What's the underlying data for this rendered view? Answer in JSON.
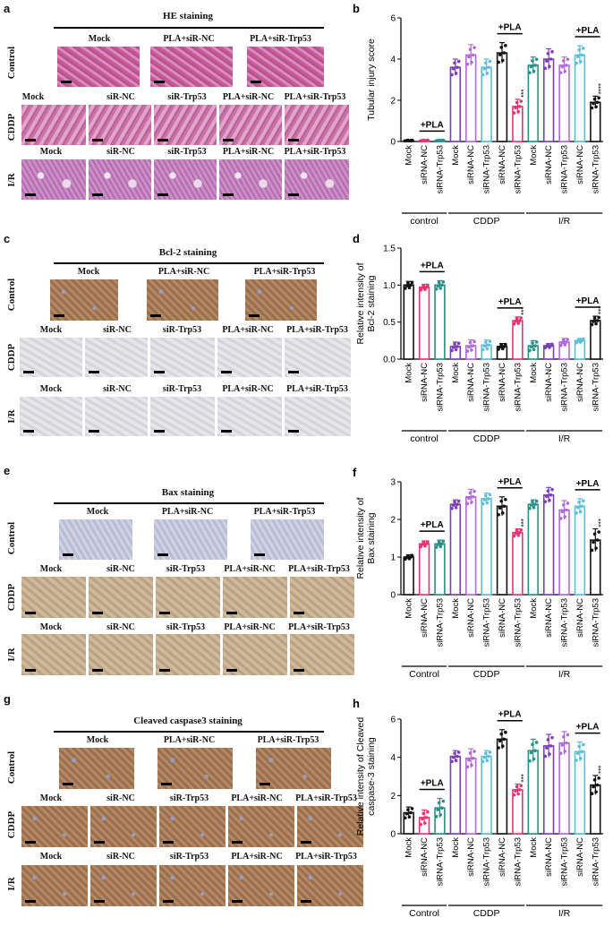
{
  "panels": {
    "a": {
      "letter": "a",
      "title": "HE staining",
      "row_labels": [
        "Control",
        "CDDP",
        "I/R"
      ],
      "control_cols": [
        "Mock",
        "PLA+siR-NC",
        "PLA+siR-Trp53"
      ],
      "treat_cols": [
        "Mock",
        "siR-NC",
        "siR-Trp53",
        "PLA+siR-NC",
        "PLA+siR-Trp53"
      ]
    },
    "c": {
      "letter": "c",
      "title": "Bcl-2 staining",
      "row_labels": [
        "Control",
        "CDDP",
        "I/R"
      ],
      "control_cols": [
        "Mock",
        "PLA+siR-NC",
        "PLA+siR-Trp53"
      ],
      "treat_cols": [
        "Mock",
        "siR-NC",
        "siR-Trp53",
        "PLA+siR-NC",
        "PLA+siR-Trp53"
      ]
    },
    "e": {
      "letter": "e",
      "title": "Bax staining",
      "row_labels": [
        "Control",
        "CDDP",
        "I/R"
      ],
      "control_cols": [
        "Mock",
        "PLA+siR-NC",
        "PLA+siR-Trp53"
      ],
      "treat_cols": [
        "Mock",
        "siR-NC",
        "siR-Trp53",
        "PLA+siR-NC",
        "PLA+siR-Trp53"
      ]
    },
    "g": {
      "letter": "g",
      "title": "Cleaved caspase3 staining",
      "row_labels": [
        "Control",
        "CDDP",
        "I/R"
      ],
      "control_cols": [
        "Mock",
        "PLA+siR-NC",
        "PLA+siR-Trp53"
      ],
      "treat_cols": [
        "Mock",
        "siR-NC",
        "siR-Trp53",
        "PLA+siR-NC",
        "PLA+siR-Trp53"
      ]
    }
  },
  "colors": {
    "black": "#111111",
    "pink": "#e8346e",
    "teal": "#2a8f86",
    "purple": "#7b3fb5",
    "lavender": "#b06ad8",
    "cyan": "#5bc0d6"
  },
  "chart_data": [
    {
      "letter": "b",
      "type": "bar",
      "ylabel": "Tubular injury score",
      "ylim": [
        0,
        6
      ],
      "yticks": [
        "0",
        "2",
        "4",
        "6"
      ],
      "categories": [
        "Mock",
        "siRNA-NC",
        "siRNA-Trp53",
        "Mock",
        "siRNA-NC",
        "siRNA-Trp53",
        "siRNA-NC",
        "siRNA-Trp53",
        "Mock",
        "siRNA-NC",
        "siRNA-Trp53",
        "siRNA-NC",
        "siRNA-Trp53"
      ],
      "values": [
        0.05,
        0.05,
        0.05,
        3.6,
        4.2,
        3.6,
        4.3,
        1.7,
        3.7,
        4.0,
        3.7,
        4.2,
        1.9
      ],
      "errors": [
        0.02,
        0.02,
        0.02,
        0.4,
        0.5,
        0.4,
        0.5,
        0.35,
        0.4,
        0.5,
        0.4,
        0.45,
        0.3
      ],
      "colors": [
        "#111111",
        "#e8346e",
        "#2a8f86",
        "#7b3fb5",
        "#b06ad8",
        "#5bc0d6",
        "#111111",
        "#e8346e",
        "#2a8f86",
        "#7b3fb5",
        "#b06ad8",
        "#5bc0d6",
        "#111111"
      ],
      "stars": [
        "",
        "",
        "",
        "",
        "",
        "",
        "",
        "***",
        "",
        "",
        "",
        "",
        "****"
      ],
      "pla_labels": [
        "+PLA",
        "+PLA",
        "+PLA"
      ],
      "pla_spans": [
        [
          1,
          2
        ],
        [
          6,
          7
        ],
        [
          11,
          12
        ]
      ],
      "groups": [
        {
          "label": "control",
          "start": 0,
          "end": 2
        },
        {
          "label": "CDDP",
          "start": 3,
          "end": 7
        },
        {
          "label": "I/R",
          "start": 8,
          "end": 12
        }
      ]
    },
    {
      "letter": "d",
      "type": "bar",
      "ylabel": "Relative intensity of\nBcl-2 staining",
      "ylim": [
        0,
        1.5
      ],
      "yticks": [
        "0.0",
        "0.5",
        "1.0",
        "1.5"
      ],
      "categories": [
        "Mock",
        "siRNA-NC",
        "siRNA-Trp53",
        "Mock",
        "siRNA-NC",
        "siRNA-Trp53",
        "siRNA-NC",
        "siRNA-Trp53",
        "Mock",
        "siRNA-NC",
        "siRNA-Trp53",
        "siRNA-NC",
        "siRNA-Trp53"
      ],
      "values": [
        1.0,
        0.97,
        1.0,
        0.17,
        0.18,
        0.19,
        0.17,
        0.52,
        0.18,
        0.18,
        0.23,
        0.25,
        0.52
      ],
      "errors": [
        0.05,
        0.04,
        0.06,
        0.06,
        0.08,
        0.07,
        0.04,
        0.05,
        0.07,
        0.03,
        0.05,
        0.03,
        0.06
      ],
      "colors": [
        "#111111",
        "#e8346e",
        "#2a8f86",
        "#7b3fb5",
        "#b06ad8",
        "#5bc0d6",
        "#111111",
        "#e8346e",
        "#2a8f86",
        "#7b3fb5",
        "#b06ad8",
        "#5bc0d6",
        "#111111"
      ],
      "stars": [
        "",
        "",
        "",
        "",
        "",
        "",
        "",
        "***",
        "",
        "",
        "",
        "",
        "***"
      ],
      "pla_labels": [
        "+PLA",
        "+PLA",
        "+PLA"
      ],
      "pla_spans": [
        [
          1,
          2
        ],
        [
          6,
          7
        ],
        [
          11,
          12
        ]
      ],
      "groups": [
        {
          "label": "control",
          "start": 0,
          "end": 2
        },
        {
          "label": "CDDP",
          "start": 3,
          "end": 7
        },
        {
          "label": "I/R",
          "start": 8,
          "end": 12
        }
      ]
    },
    {
      "letter": "f",
      "type": "bar",
      "ylabel": "Relative intensity of\nBax staining",
      "ylim": [
        0,
        3
      ],
      "yticks": [
        "0",
        "1",
        "2",
        "3"
      ],
      "categories": [
        "Mock",
        "siRNA-NC",
        "siRNA-Trp53",
        "Mock",
        "siRNA-NC",
        "siRNA-Trp53",
        "siRNA-NC",
        "siRNA-Trp53",
        "Mock",
        "siRNA-NC",
        "siRNA-Trp53",
        "siRNA-NC",
        "siRNA-Trp53"
      ],
      "values": [
        1.0,
        1.35,
        1.35,
        2.4,
        2.6,
        2.55,
        2.35,
        1.65,
        2.4,
        2.65,
        2.25,
        2.35,
        1.45
      ],
      "errors": [
        0.06,
        0.08,
        0.1,
        0.12,
        0.2,
        0.15,
        0.25,
        0.1,
        0.12,
        0.2,
        0.25,
        0.2,
        0.3
      ],
      "colors": [
        "#111111",
        "#e8346e",
        "#2a8f86",
        "#7b3fb5",
        "#b06ad8",
        "#5bc0d6",
        "#111111",
        "#e8346e",
        "#2a8f86",
        "#7b3fb5",
        "#b06ad8",
        "#5bc0d6",
        "#111111"
      ],
      "stars": [
        "",
        "",
        "",
        "",
        "",
        "",
        "",
        "***",
        "",
        "",
        "",
        "",
        "***"
      ],
      "pla_labels": [
        "+PLA",
        "+PLA",
        "+PLA"
      ],
      "pla_spans": [
        [
          1,
          2
        ],
        [
          6,
          7
        ],
        [
          11,
          12
        ]
      ],
      "groups": [
        {
          "label": "Control",
          "start": 0,
          "end": 2
        },
        {
          "label": "CDDP",
          "start": 3,
          "end": 7
        },
        {
          "label": "I/R",
          "start": 8,
          "end": 12
        }
      ]
    },
    {
      "letter": "h",
      "type": "bar",
      "ylabel": "Relative intensity of Cleaved\ncaspase-3 staining",
      "ylim": [
        0,
        6
      ],
      "yticks": [
        "0",
        "2",
        "4",
        "6"
      ],
      "categories": [
        "Mock",
        "siRNA-NC",
        "siRNA-Trp53",
        "Mock",
        "siRNA-NC",
        "siRNA-Trp53",
        "siRNA-NC",
        "siRNA-Trp53",
        "Mock",
        "siRNA-NC",
        "siRNA-Trp53",
        "siRNA-NC",
        "siRNA-Trp53"
      ],
      "values": [
        1.1,
        0.85,
        1.35,
        4.05,
        3.95,
        4.05,
        4.95,
        2.3,
        4.35,
        4.6,
        4.75,
        4.3,
        2.55
      ],
      "errors": [
        0.3,
        0.4,
        0.5,
        0.3,
        0.5,
        0.3,
        0.5,
        0.3,
        0.6,
        0.6,
        0.6,
        0.5,
        0.5
      ],
      "colors": [
        "#111111",
        "#e8346e",
        "#2a8f86",
        "#7b3fb5",
        "#b06ad8",
        "#5bc0d6",
        "#111111",
        "#e8346e",
        "#2a8f86",
        "#7b3fb5",
        "#b06ad8",
        "#5bc0d6",
        "#111111"
      ],
      "stars": [
        "",
        "",
        "",
        "",
        "",
        "",
        "",
        "***",
        "",
        "",
        "",
        "",
        "***"
      ],
      "pla_labels": [
        "+PLA",
        "+PLA",
        "+PLA"
      ],
      "pla_spans": [
        [
          1,
          2
        ],
        [
          6,
          7
        ],
        [
          11,
          12
        ]
      ],
      "groups": [
        {
          "label": "Control",
          "start": 0,
          "end": 2
        },
        {
          "label": "CDDP",
          "start": 3,
          "end": 7
        },
        {
          "label": "I/R",
          "start": 8,
          "end": 12
        }
      ]
    }
  ]
}
